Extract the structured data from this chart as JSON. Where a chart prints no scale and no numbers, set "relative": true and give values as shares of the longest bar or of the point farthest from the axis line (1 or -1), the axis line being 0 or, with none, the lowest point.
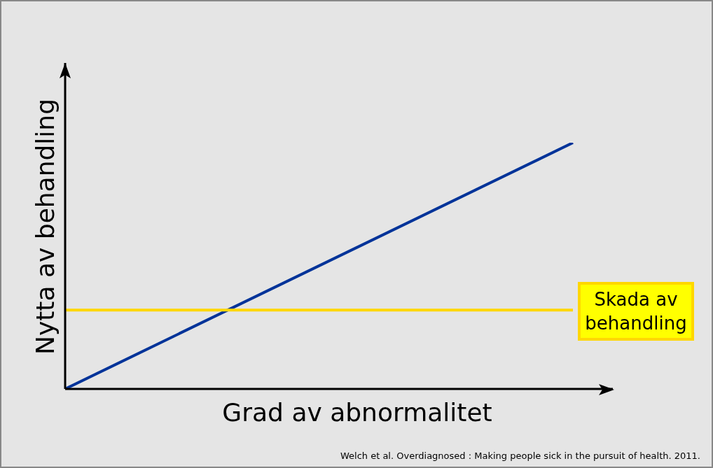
{
  "chart_data": {
    "type": "line",
    "relative": true,
    "xlabel": "Grad av abnormalitet",
    "ylabel": "Nytta av behandling",
    "categories": [
      null,
      null
    ],
    "series": [
      {
        "color": "#003399",
        "values": [
          0,
          1
        ]
      },
      {
        "name": "Skada av behandling",
        "color": "#ffd700",
        "values": [
          0.32,
          0.32
        ]
      }
    ],
    "legend": false,
    "grid": false,
    "marker": "none",
    "line_style": "solid",
    "annotations": [
      "Welch et al. Overdiagnosed : Making people sick in the pursuit of health. 2011."
    ]
  }
}
